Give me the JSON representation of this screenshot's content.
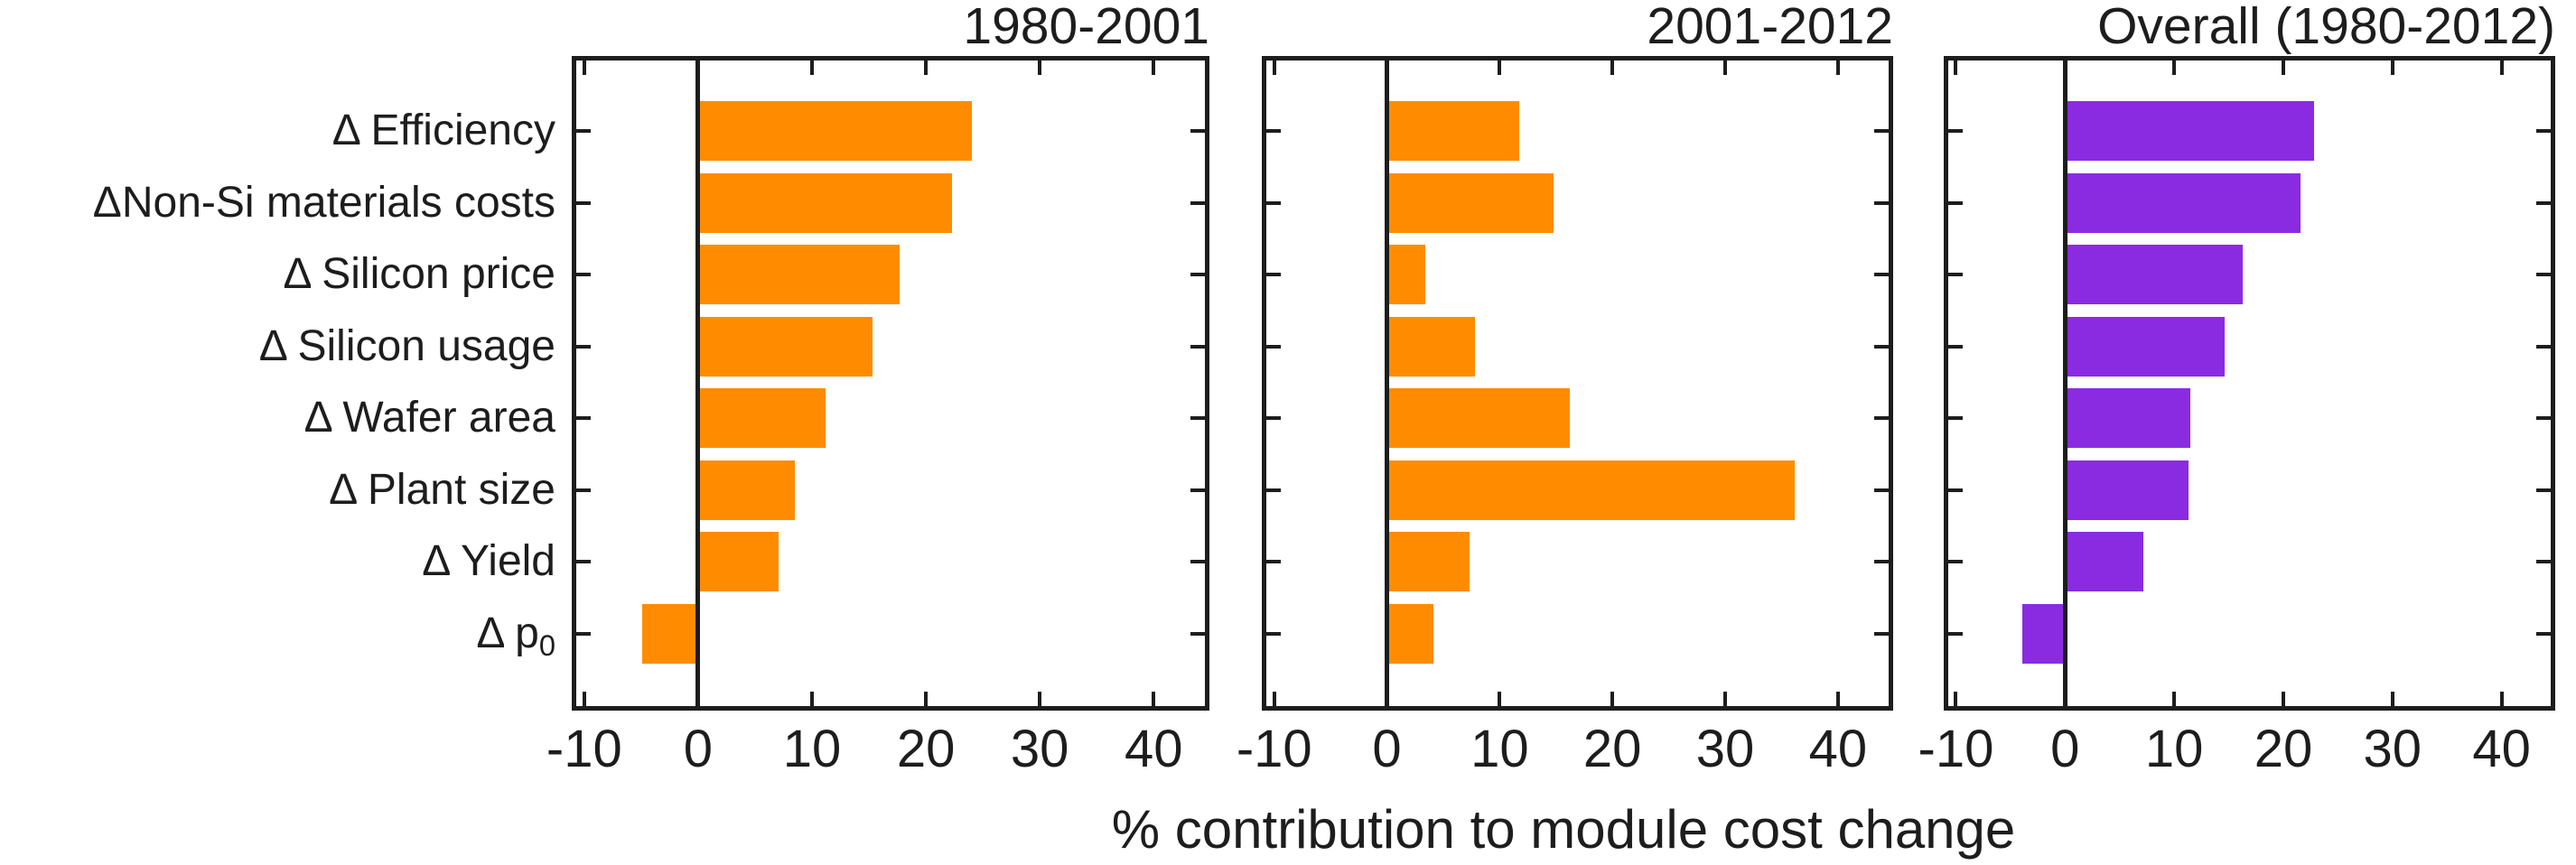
{
  "figure": {
    "background": "#ffffff",
    "axis_color": "#1d1d1d"
  },
  "chart_data": {
    "type": "bar",
    "orientation": "horizontal",
    "xlabel": "% contribution to module cost change",
    "categories": [
      "Δ Efficiency",
      "ΔNon-Si materials costs",
      "Δ Silicon price",
      "Δ Silicon usage",
      "Δ Wafer area",
      "Δ Plant size",
      "Δ Yield",
      "Δ p_0"
    ],
    "x_ticks": [
      -10,
      0,
      10,
      20,
      30,
      40
    ],
    "xlim": [
      -10.7,
      44.5
    ],
    "grid": false,
    "legend_position": "none",
    "panels": [
      {
        "title": "1980-2001",
        "bar_color": "#FF8C00",
        "values": [
          24.0,
          22.3,
          17.7,
          15.3,
          11.2,
          8.5,
          7.1,
          -4.9
        ]
      },
      {
        "title": "2001-2012",
        "bar_color": "#FF8C00",
        "values": [
          11.7,
          14.8,
          3.4,
          7.8,
          16.2,
          36.2,
          7.3,
          4.1
        ]
      },
      {
        "title": "Overall (1980-2012)",
        "bar_color": "#8A2BE2",
        "values": [
          22.8,
          21.6,
          16.3,
          14.6,
          11.5,
          11.3,
          7.2,
          -3.9
        ]
      }
    ]
  }
}
